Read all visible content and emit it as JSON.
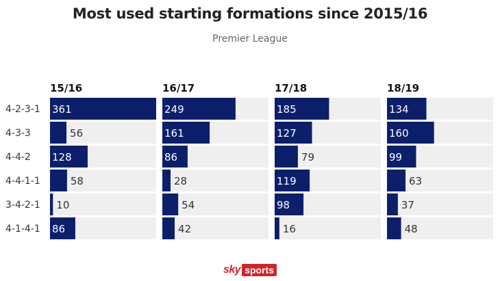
{
  "header": {
    "title": "Most used starting formations since 2015/16",
    "subtitle": "Premier League"
  },
  "logo": {
    "sky": "sky",
    "sports": "sports"
  },
  "colors": {
    "bar": "#0c1f6b",
    "track": "#efefef"
  },
  "chart_data": {
    "type": "bar",
    "orientation": "horizontal",
    "title": "Most used starting formations since 2015/16",
    "subtitle": "Premier League",
    "categories": [
      "4-2-3-1",
      "4-3-3",
      "4-4-2",
      "4-4-1-1",
      "3-4-2-1",
      "4-1-4-1"
    ],
    "series": [
      {
        "name": "15/16",
        "values": [
          361,
          56,
          128,
          58,
          10,
          86
        ]
      },
      {
        "name": "16/17",
        "values": [
          249,
          161,
          86,
          28,
          54,
          42
        ]
      },
      {
        "name": "17/18",
        "values": [
          185,
          127,
          79,
          119,
          98,
          16
        ]
      },
      {
        "name": "18/19",
        "values": [
          134,
          160,
          99,
          63,
          37,
          48
        ]
      }
    ],
    "xlim": [
      0,
      361
    ],
    "grid": false,
    "legend": "none"
  }
}
